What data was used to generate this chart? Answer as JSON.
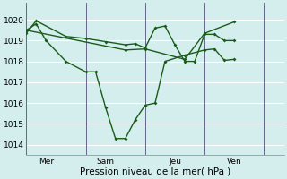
{
  "bg_color": "#d4eeee",
  "plot_bg_color": "#d4eeee",
  "grid_color": "#aadddd",
  "line_color": "#1a5c1a",
  "ylabel": "Pression niveau de la mer( hPa )",
  "ylim": [
    1013.5,
    1020.8
  ],
  "yticks": [
    1014,
    1015,
    1016,
    1017,
    1018,
    1019,
    1020
  ],
  "xtick_labels": [
    "Mer",
    "Sam",
    "Jeu",
    "Ven"
  ],
  "xtick_positions": [
    2,
    8,
    15,
    21
  ],
  "vline_positions": [
    0,
    6,
    12,
    18,
    24
  ],
  "xlim": [
    0,
    26
  ],
  "series1_x": [
    0,
    1,
    2,
    4,
    6,
    7,
    8,
    9,
    10,
    11,
    12,
    13,
    14,
    16,
    18,
    19,
    20,
    21
  ],
  "series1_y": [
    1019.5,
    1019.8,
    1019.0,
    1018.0,
    1017.5,
    1017.5,
    1015.8,
    1014.3,
    1014.3,
    1015.2,
    1015.9,
    1016.0,
    1018.0,
    1018.3,
    1018.55,
    1018.6,
    1018.05,
    1018.1
  ],
  "series2_x": [
    0,
    1,
    4,
    6,
    8,
    10,
    11,
    12,
    13,
    14,
    15,
    16,
    17,
    18,
    19,
    20,
    21
  ],
  "series2_y": [
    1019.35,
    1019.95,
    1019.2,
    1019.1,
    1018.95,
    1018.8,
    1018.85,
    1018.65,
    1019.6,
    1019.7,
    1018.8,
    1018.0,
    1018.0,
    1019.3,
    1019.3,
    1019.0,
    1019.0
  ],
  "series3_x": [
    0,
    10,
    12,
    16,
    18,
    21
  ],
  "series3_y": [
    1019.5,
    1018.55,
    1018.6,
    1018.1,
    1019.35,
    1019.9
  ],
  "vline_color": "#666688",
  "tick_fontsize": 6.5,
  "xlabel_fontsize": 7.5,
  "marker": "D",
  "markersize": 2.0,
  "linewidth": 1.0
}
